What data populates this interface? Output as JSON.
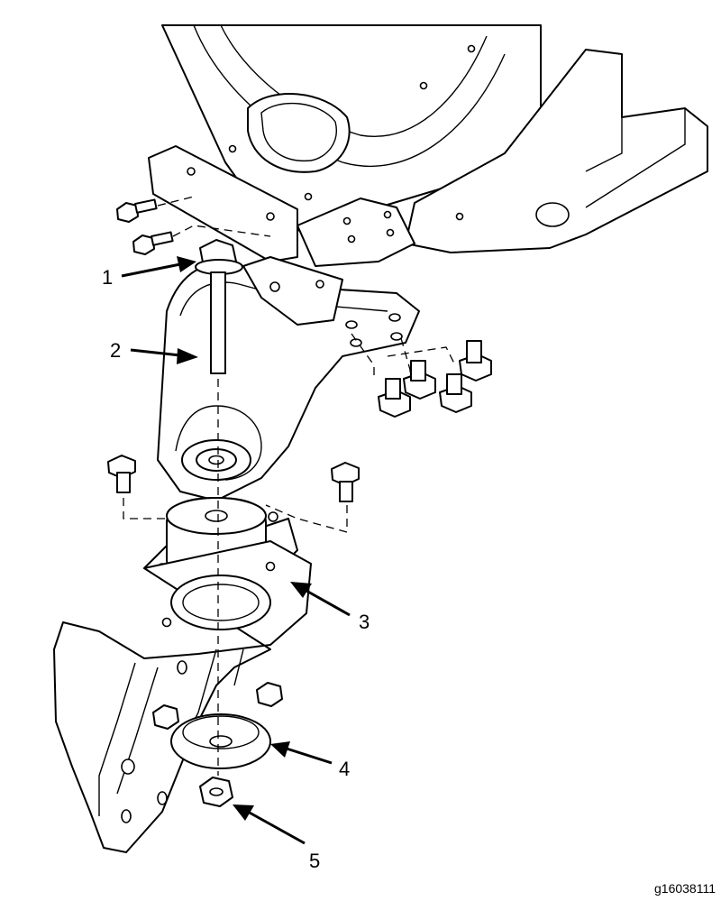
{
  "callouts": [
    {
      "id": "1",
      "label": "1"
    },
    {
      "id": "2",
      "label": "2"
    },
    {
      "id": "3",
      "label": "3"
    },
    {
      "id": "4",
      "label": "4"
    },
    {
      "id": "5",
      "label": "5"
    }
  ],
  "figure_id": "g16038111"
}
